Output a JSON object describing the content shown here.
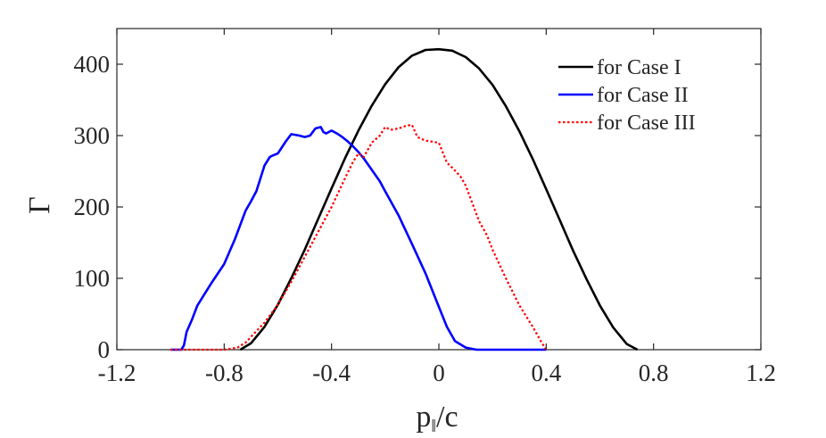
{
  "chart_data": {
    "type": "line",
    "title": "",
    "xlabel_main": "p",
    "xlabel_sub": "‖",
    "xlabel_rest": "/c",
    "ylabel": "Γ",
    "xlim": [
      -1.2,
      1.2
    ],
    "ylim": [
      0,
      450
    ],
    "xticks": [
      -1.2,
      -0.8,
      -0.4,
      0,
      0.4,
      0.8,
      1.2
    ],
    "xtick_labels": [
      "-1.2",
      "-0.8",
      "-0.4",
      "0",
      "0.4",
      "0.8",
      "1.2"
    ],
    "yticks": [
      0,
      100,
      200,
      300,
      400
    ],
    "ytick_labels": [
      "0",
      "100",
      "200",
      "300",
      "400"
    ],
    "grid": false,
    "legend_position": "top-right",
    "series": [
      {
        "name": "for Case I",
        "color": "#000000",
        "dash": "solid",
        "x": [
          -0.74,
          -0.7,
          -0.65,
          -0.6,
          -0.55,
          -0.5,
          -0.45,
          -0.4,
          -0.35,
          -0.3,
          -0.25,
          -0.2,
          -0.15,
          -0.1,
          -0.05,
          0.0,
          0.05,
          0.1,
          0.15,
          0.2,
          0.25,
          0.3,
          0.35,
          0.4,
          0.45,
          0.5,
          0.55,
          0.6,
          0.65,
          0.7,
          0.74
        ],
        "y": [
          0,
          9,
          32,
          63,
          100,
          140,
          183,
          226,
          268,
          307,
          342,
          372,
          396,
          412,
          420,
          421,
          419,
          410,
          394,
          371,
          341,
          306,
          267,
          225,
          182,
          139,
          99,
          62,
          31,
          8,
          0
        ]
      },
      {
        "name": "for Case II",
        "color": "#0000ff",
        "dash": "solid",
        "x": [
          -1.0,
          -0.96,
          -0.95,
          -0.94,
          -0.92,
          -0.9,
          -0.85,
          -0.8,
          -0.76,
          -0.72,
          -0.7,
          -0.68,
          -0.65,
          -0.63,
          -0.62,
          -0.6,
          -0.57,
          -0.55,
          -0.52,
          -0.5,
          -0.48,
          -0.46,
          -0.44,
          -0.43,
          -0.42,
          -0.4,
          -0.38,
          -0.36,
          -0.34,
          -0.32,
          -0.3,
          -0.28,
          -0.25,
          -0.22,
          -0.2,
          -0.15,
          -0.1,
          -0.05,
          0.0,
          0.03,
          0.06,
          0.1,
          0.14,
          0.4
        ],
        "y": [
          0,
          0,
          6,
          25,
          42,
          62,
          92,
          120,
          155,
          195,
          208,
          222,
          258,
          270,
          272,
          275,
          292,
          302,
          300,
          298,
          300,
          310,
          312,
          305,
          303,
          307,
          303,
          298,
          292,
          285,
          277,
          268,
          252,
          236,
          222,
          188,
          148,
          107,
          60,
          32,
          12,
          3,
          0,
          0
        ]
      },
      {
        "name": "for Case III",
        "color": "#ff0000",
        "dash": "dotted",
        "x": [
          -1.0,
          -0.9,
          -0.8,
          -0.75,
          -0.72,
          -0.7,
          -0.65,
          -0.6,
          -0.55,
          -0.5,
          -0.45,
          -0.4,
          -0.35,
          -0.32,
          -0.3,
          -0.28,
          -0.25,
          -0.22,
          -0.2,
          -0.18,
          -0.15,
          -0.12,
          -0.1,
          -0.08,
          -0.05,
          0.0,
          0.03,
          0.05,
          0.08,
          0.1,
          0.12,
          0.15,
          0.18,
          0.2,
          0.25,
          0.3,
          0.35,
          0.38,
          0.4
        ],
        "y": [
          0,
          0,
          0,
          3,
          10,
          18,
          38,
          63,
          95,
          130,
          165,
          200,
          240,
          263,
          275,
          270,
          290,
          300,
          312,
          308,
          310,
          314,
          315,
          298,
          293,
          290,
          262,
          255,
          243,
          230,
          210,
          180,
          160,
          140,
          100,
          62,
          32,
          12,
          0
        ]
      }
    ]
  }
}
